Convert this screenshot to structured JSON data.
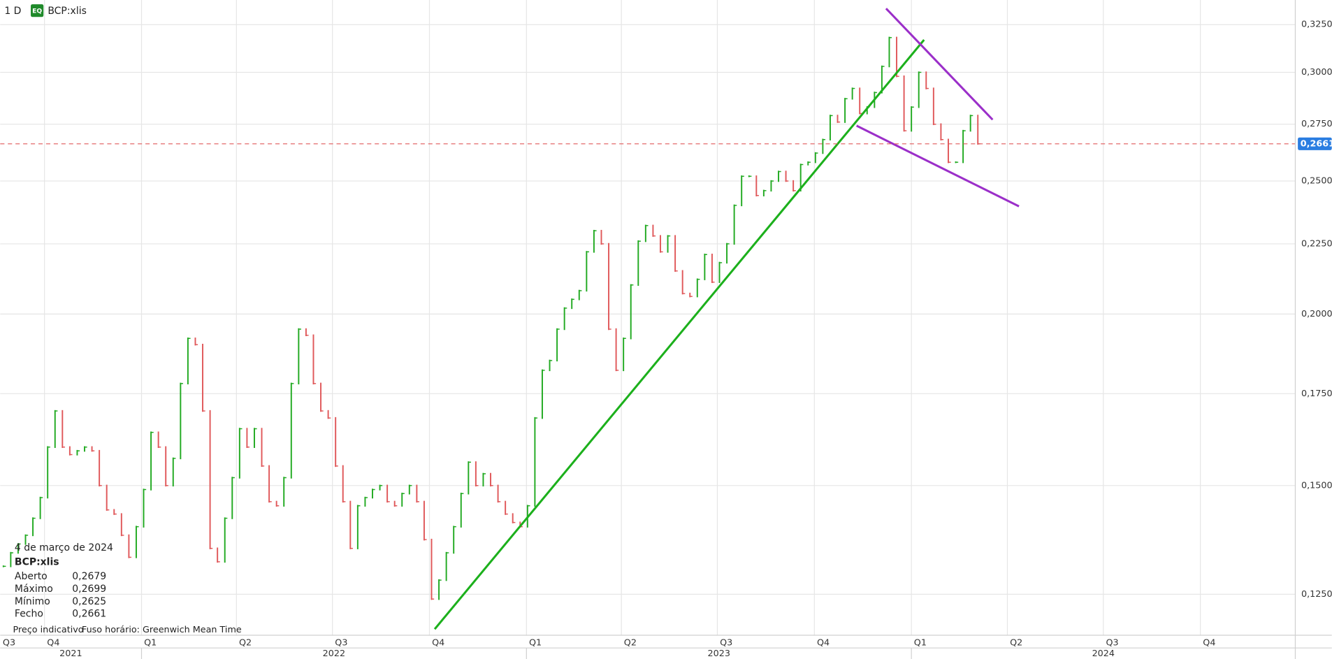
{
  "chart_data": {
    "type": "ohlc",
    "interval": "1 D",
    "badge": "EQ",
    "log_y": true,
    "grid": true,
    "up_color": "#22aa22",
    "down_color": "#e0585a",
    "xlim": [
      "2021-08-20",
      "2024-12-30"
    ],
    "ylim": [
      0.1167,
      0.3387
    ],
    "yticks": [
      {
        "value": 0.125,
        "label": "0,1250"
      },
      {
        "value": 0.15,
        "label": "0,1500"
      },
      {
        "value": 0.175,
        "label": "0,1750"
      },
      {
        "value": 0.2,
        "label": "0,2000"
      },
      {
        "value": 0.225,
        "label": "0,2250"
      },
      {
        "value": 0.25,
        "label": "0,2500"
      },
      {
        "value": 0.275,
        "label": "0,2750"
      },
      {
        "value": 0.3,
        "label": "0,3000"
      },
      {
        "value": 0.325,
        "label": "0,3250"
      }
    ],
    "xticks": [
      {
        "value": "2021-07-01",
        "label": "Q3"
      },
      {
        "value": "2021-10-01",
        "label": "Q4"
      },
      {
        "value": "2022-01-01",
        "label": "Q1"
      },
      {
        "value": "2022-04-01",
        "label": "Q2"
      },
      {
        "value": "2022-07-01",
        "label": "Q3"
      },
      {
        "value": "2022-10-01",
        "label": "Q4"
      },
      {
        "value": "2023-01-01",
        "label": "Q1"
      },
      {
        "value": "2023-04-01",
        "label": "Q2"
      },
      {
        "value": "2023-07-01",
        "label": "Q3"
      },
      {
        "value": "2023-10-01",
        "label": "Q4"
      },
      {
        "value": "2024-01-01",
        "label": "Q1"
      },
      {
        "value": "2024-04-01",
        "label": "Q2"
      },
      {
        "value": "2024-07-01",
        "label": "Q3"
      },
      {
        "value": "2024-10-01",
        "label": "Q4"
      }
    ],
    "year_ticks": [
      {
        "value": "2021-01-01",
        "label": "2021"
      },
      {
        "value": "2022-01-01",
        "label": "2022"
      },
      {
        "value": "2023-01-01",
        "label": "2023"
      },
      {
        "value": "2024-01-01",
        "label": "2024"
      }
    ],
    "x": [
      "2021-08-23",
      "2021-08-30",
      "2021-09-06",
      "2021-09-13",
      "2021-09-20",
      "2021-09-27",
      "2021-10-04",
      "2021-10-11",
      "2021-10-18",
      "2021-10-25",
      "2021-11-01",
      "2021-11-08",
      "2021-11-15",
      "2021-11-22",
      "2021-11-29",
      "2021-12-06",
      "2021-12-13",
      "2021-12-20",
      "2021-12-27",
      "2022-01-03",
      "2022-01-10",
      "2022-01-17",
      "2022-01-24",
      "2022-01-31",
      "2022-02-07",
      "2022-02-14",
      "2022-02-21",
      "2022-02-28",
      "2022-03-07",
      "2022-03-14",
      "2022-03-21",
      "2022-03-28",
      "2022-04-04",
      "2022-04-11",
      "2022-04-18",
      "2022-04-25",
      "2022-05-02",
      "2022-05-09",
      "2022-05-16",
      "2022-05-23",
      "2022-05-30",
      "2022-06-06",
      "2022-06-13",
      "2022-06-20",
      "2022-06-27",
      "2022-07-04",
      "2022-07-11",
      "2022-07-18",
      "2022-07-25",
      "2022-08-01",
      "2022-08-08",
      "2022-08-15",
      "2022-08-22",
      "2022-08-29",
      "2022-09-05",
      "2022-09-12",
      "2022-09-19",
      "2022-09-26",
      "2022-10-03",
      "2022-10-10",
      "2022-10-17",
      "2022-10-24",
      "2022-10-31",
      "2022-11-07",
      "2022-11-14",
      "2022-11-21",
      "2022-11-28",
      "2022-12-05",
      "2022-12-12",
      "2022-12-19",
      "2022-12-26",
      "2023-01-02",
      "2023-01-09",
      "2023-01-16",
      "2023-01-23",
      "2023-01-30",
      "2023-02-06",
      "2023-02-13",
      "2023-02-20",
      "2023-02-27",
      "2023-03-06",
      "2023-03-13",
      "2023-03-20",
      "2023-03-27",
      "2023-04-03",
      "2023-04-10",
      "2023-04-17",
      "2023-04-24",
      "2023-05-01",
      "2023-05-08",
      "2023-05-15",
      "2023-05-22",
      "2023-05-29",
      "2023-06-05",
      "2023-06-12",
      "2023-06-19",
      "2023-06-26",
      "2023-07-03",
      "2023-07-10",
      "2023-07-17",
      "2023-07-24",
      "2023-07-31",
      "2023-08-07",
      "2023-08-14",
      "2023-08-21",
      "2023-08-28",
      "2023-09-04",
      "2023-09-11",
      "2023-09-18",
      "2023-09-25",
      "2023-10-02",
      "2023-10-09",
      "2023-10-16",
      "2023-10-23",
      "2023-10-30",
      "2023-11-06",
      "2023-11-13",
      "2023-11-20",
      "2023-11-27",
      "2023-12-04",
      "2023-12-11",
      "2023-12-18",
      "2023-12-25",
      "2024-01-01",
      "2024-01-08",
      "2024-01-15",
      "2024-01-22",
      "2024-01-29",
      "2024-02-05",
      "2024-02-12",
      "2024-02-19",
      "2024-02-26",
      "2024-03-04"
    ],
    "series": [
      {
        "name": "BCP:xlis",
        "values": [
          0.131,
          0.134,
          0.136,
          0.138,
          0.142,
          0.147,
          0.16,
          0.17,
          0.16,
          0.158,
          0.159,
          0.16,
          0.159,
          0.15,
          0.144,
          0.143,
          0.138,
          0.133,
          0.14,
          0.149,
          0.164,
          0.16,
          0.15,
          0.157,
          0.178,
          0.192,
          0.19,
          0.17,
          0.135,
          0.132,
          0.142,
          0.152,
          0.165,
          0.16,
          0.165,
          0.155,
          0.146,
          0.145,
          0.152,
          0.178,
          0.195,
          0.193,
          0.178,
          0.17,
          0.168,
          0.155,
          0.146,
          0.135,
          0.145,
          0.147,
          0.149,
          0.15,
          0.146,
          0.145,
          0.148,
          0.15,
          0.146,
          0.137,
          0.124,
          0.128,
          0.134,
          0.14,
          0.148,
          0.156,
          0.15,
          0.153,
          0.15,
          0.146,
          0.143,
          0.141,
          0.14,
          0.145,
          0.168,
          0.182,
          0.185,
          0.195,
          0.202,
          0.205,
          0.208,
          0.222,
          0.23,
          0.225,
          0.195,
          0.182,
          0.192,
          0.21,
          0.226,
          0.232,
          0.228,
          0.222,
          0.228,
          0.215,
          0.207,
          0.206,
          0.212,
          0.221,
          0.211,
          0.218,
          0.225,
          0.24,
          0.252,
          0.252,
          0.244,
          0.246,
          0.25,
          0.254,
          0.25,
          0.246,
          0.257,
          0.258,
          0.262,
          0.268,
          0.279,
          0.276,
          0.287,
          0.292,
          0.28,
          0.283,
          0.29,
          0.303,
          0.318,
          0.298,
          0.272,
          0.283,
          0.3,
          0.292,
          0.275,
          0.268,
          0.258,
          0.258,
          0.272,
          0.279,
          0.2661
        ]
      }
    ],
    "last_price": {
      "value": 0.2661,
      "label": "0,2661",
      "color": "#e0585a",
      "box_color": "#2a7de1"
    },
    "trendlines": [
      {
        "color": "#1cb01c",
        "x": [
          "2022-10-06",
          "2024-01-13"
        ],
        "values": [
          0.1179,
          0.3168
        ]
      },
      {
        "color": "#9b2fc9",
        "x": [
          "2023-12-08",
          "2024-03-18"
        ],
        "values": [
          0.3339,
          0.2771
        ]
      },
      {
        "color": "#9b2fc9",
        "x": [
          "2023-11-10",
          "2024-04-12"
        ],
        "values": [
          0.2743,
          0.2396
        ]
      }
    ],
    "ohlc_panel": {
      "date": "4 de março de 2024",
      "rows": [
        [
          "Aberto",
          "0,2679"
        ],
        [
          "Máximo",
          "0,2699"
        ],
        [
          "Mínimo",
          "0,2625"
        ],
        [
          "Fecho",
          "0,2661"
        ]
      ]
    },
    "footer": [
      "Preço indicativo",
      "Fuso horário: Greenwich Mean Time"
    ]
  }
}
